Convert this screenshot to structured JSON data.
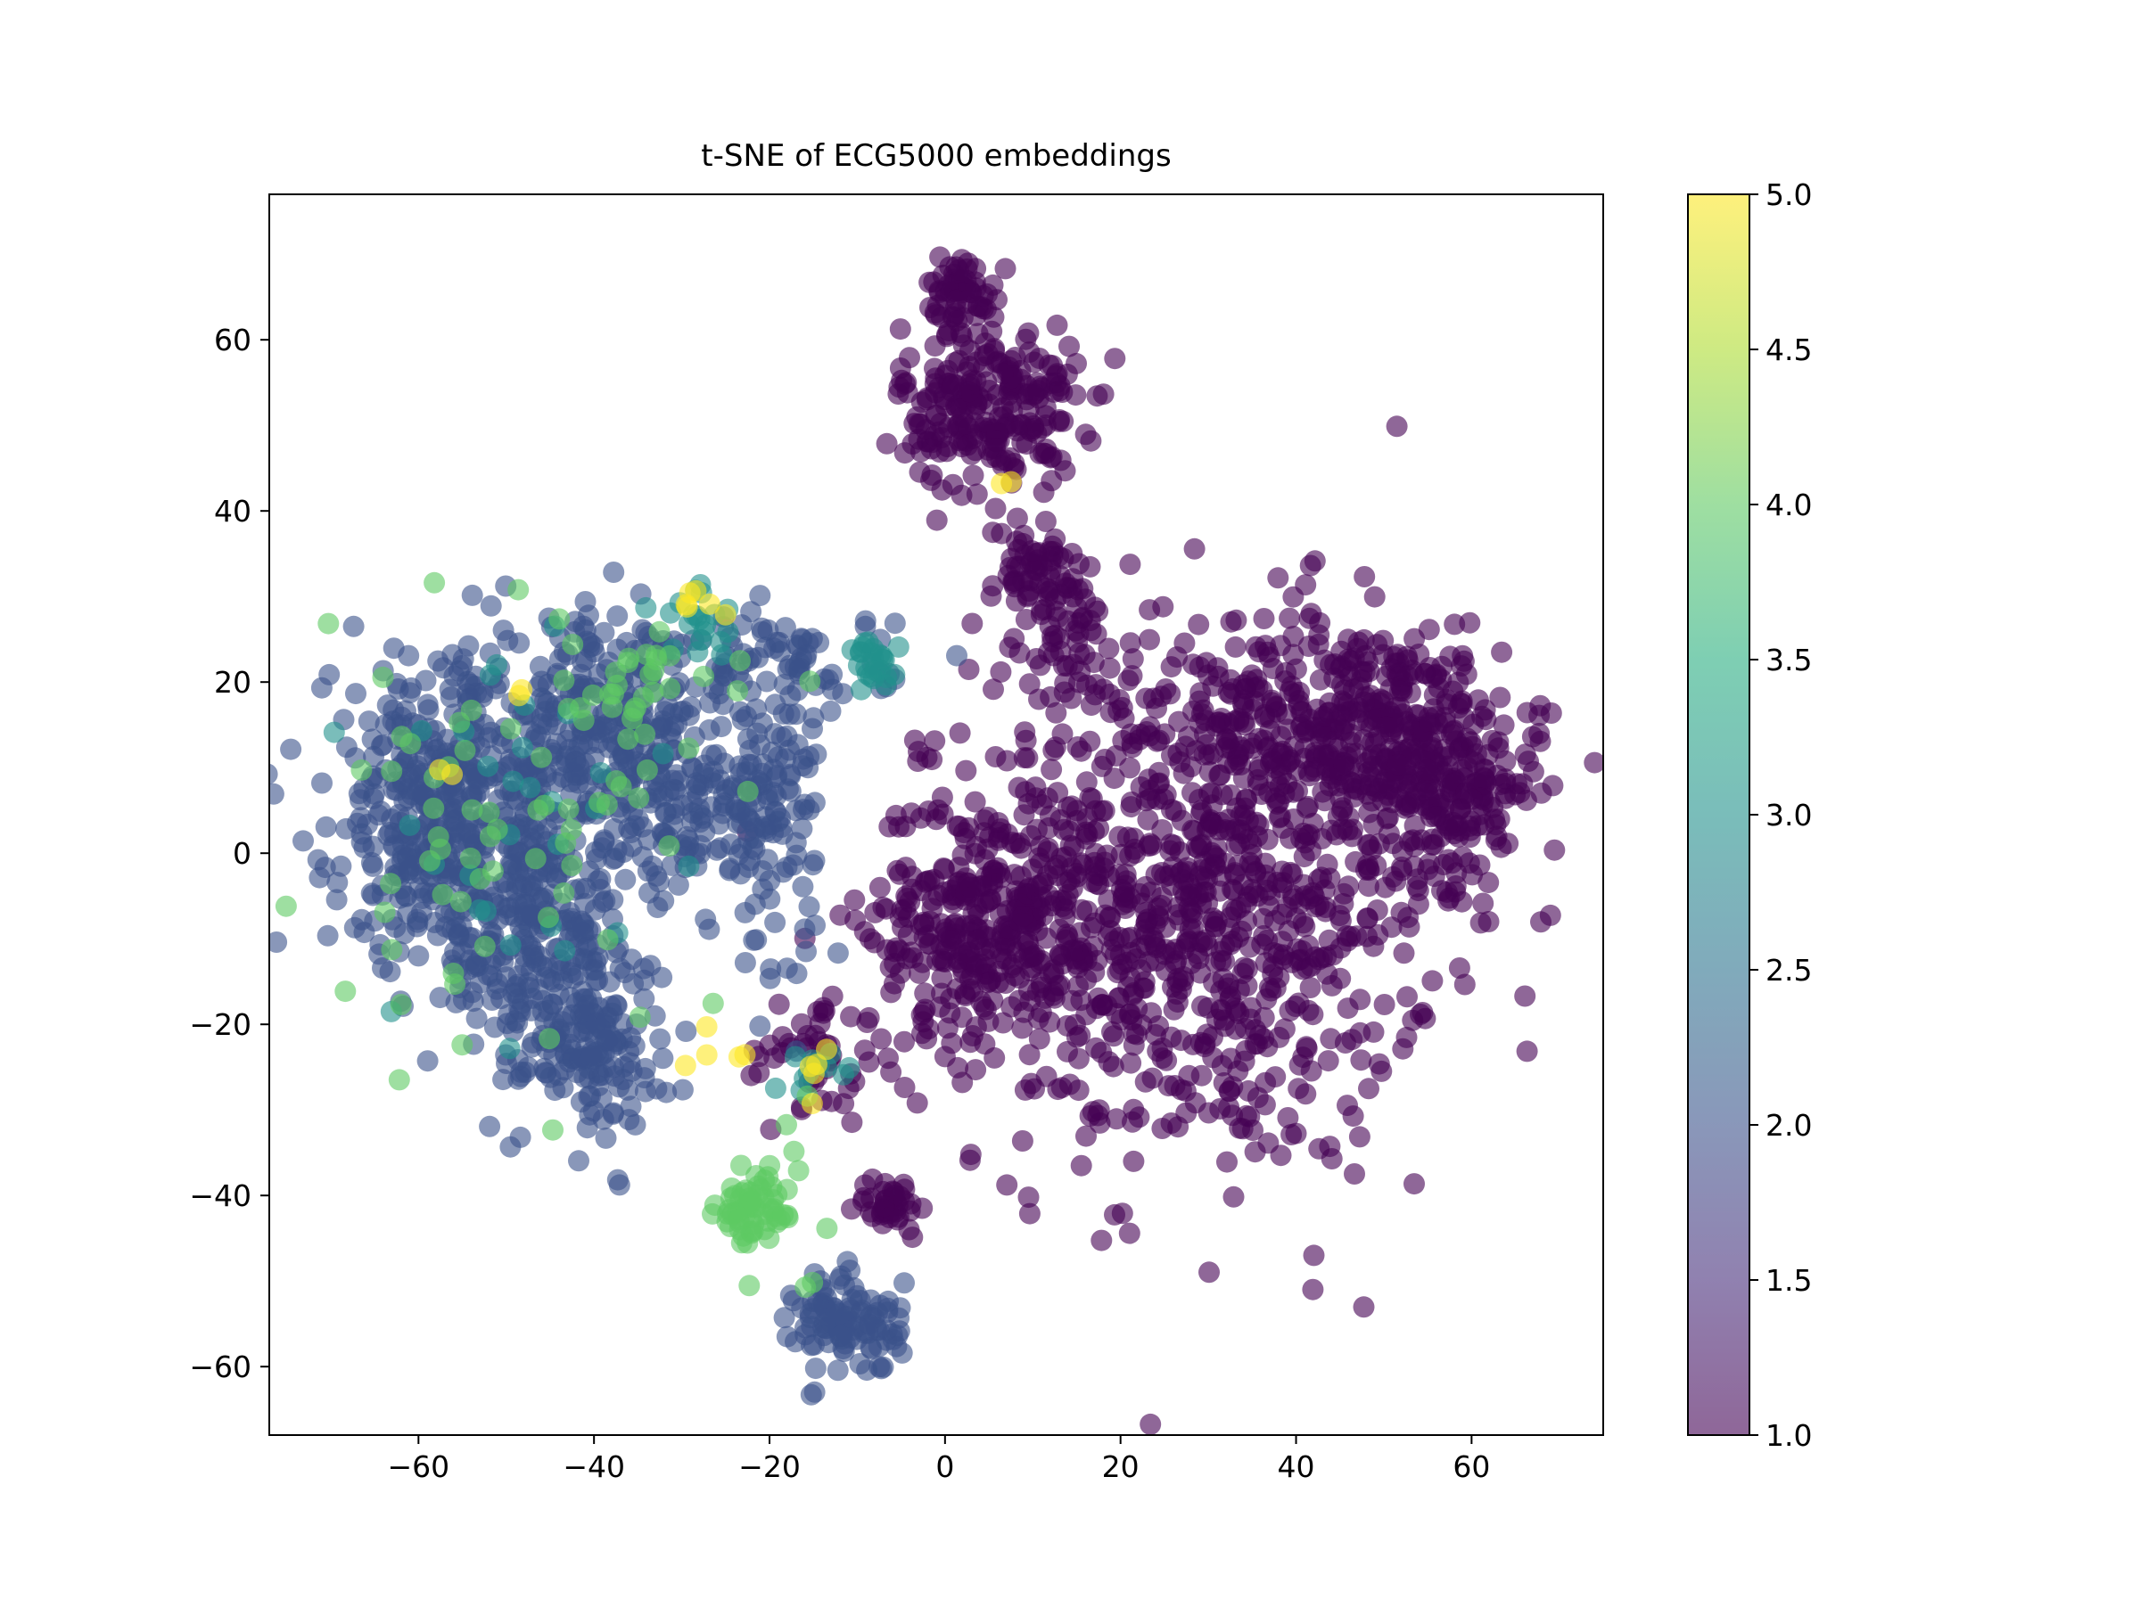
{
  "chart_data": {
    "type": "scatter",
    "title": "t-SNE of ECG5000 embeddings",
    "xlabel": "",
    "ylabel": "",
    "xlim": [
      -77,
      75
    ],
    "ylim": [
      -68,
      77
    ],
    "x_ticks": [
      -60,
      -40,
      -20,
      0,
      20,
      40,
      60
    ],
    "x_tick_labels": [
      "−60",
      "−40",
      "−20",
      "0",
      "20",
      "40",
      "60"
    ],
    "y_ticks": [
      -60,
      -40,
      -20,
      0,
      20,
      40,
      60
    ],
    "y_tick_labels": [
      "−60",
      "−40",
      "−20",
      "0",
      "20",
      "40",
      "60"
    ],
    "grid": false,
    "legend": "none",
    "colormap": "viridis",
    "marker_alpha": 0.6,
    "colorbar": {
      "range": [
        1.0,
        5.0
      ],
      "ticks": [
        1.0,
        1.5,
        2.0,
        2.5,
        3.0,
        3.5,
        4.0,
        4.5,
        5.0
      ],
      "tick_labels": [
        "1.0",
        "1.5",
        "2.0",
        "2.5",
        "3.0",
        "3.5",
        "4.0",
        "4.5",
        "5.0"
      ]
    },
    "clusters": [
      {
        "label": 1,
        "cx": 30,
        "cy": -5,
        "sx": 13,
        "sy": 16,
        "n": 900
      },
      {
        "label": 1,
        "cx": 47,
        "cy": 15,
        "sx": 9,
        "sy": 6,
        "n": 300
      },
      {
        "label": 1,
        "cx": 58,
        "cy": 8,
        "sx": 5,
        "sy": 6,
        "n": 200
      },
      {
        "label": 1,
        "cx": 5,
        "cy": -8,
        "sx": 7,
        "sy": 8,
        "n": 350
      },
      {
        "label": 1,
        "cx": 5,
        "cy": 52,
        "sx": 5,
        "sy": 5,
        "n": 250
      },
      {
        "label": 1,
        "cx": 2,
        "cy": 66,
        "sx": 2,
        "sy": 2,
        "n": 60
      },
      {
        "label": 1,
        "cx": 10,
        "cy": 32,
        "sx": 4,
        "sy": 3,
        "n": 70
      },
      {
        "label": 1,
        "cx": 15,
        "cy": 25,
        "sx": 2,
        "sy": 3,
        "n": 40
      },
      {
        "label": 1,
        "cx": -6,
        "cy": -41,
        "sx": 2,
        "sy": 1.5,
        "n": 40
      },
      {
        "label": 1,
        "cx": -15,
        "cy": -24,
        "sx": 4,
        "sy": 4,
        "n": 50
      },
      {
        "label": 2,
        "cx": -58,
        "cy": 5,
        "sx": 6,
        "sy": 9,
        "n": 380
      },
      {
        "label": 2,
        "cx": -47,
        "cy": -8,
        "sx": 6,
        "sy": 9,
        "n": 300
      },
      {
        "label": 2,
        "cx": -40,
        "cy": 15,
        "sx": 6,
        "sy": 6,
        "n": 220
      },
      {
        "label": 2,
        "cx": -30,
        "cy": 5,
        "sx": 4,
        "sy": 5,
        "n": 120
      },
      {
        "label": 2,
        "cx": -20,
        "cy": 5,
        "sx": 3,
        "sy": 8,
        "n": 120
      },
      {
        "label": 2,
        "cx": -40,
        "cy": -22,
        "sx": 4,
        "sy": 5,
        "n": 140
      },
      {
        "label": 2,
        "cx": -11,
        "cy": -55,
        "sx": 3,
        "sy": 3,
        "n": 110
      },
      {
        "label": 2,
        "cx": -20,
        "cy": 22,
        "sx": 7,
        "sy": 3,
        "n": 90
      },
      {
        "label": 3,
        "cx": -8,
        "cy": 22,
        "sx": 1.5,
        "sy": 1.5,
        "n": 25
      },
      {
        "label": 3,
        "cx": -28,
        "cy": 27,
        "sx": 3,
        "sy": 2,
        "n": 20
      },
      {
        "label": 3,
        "cx": -14,
        "cy": -25,
        "sx": 2,
        "sy": 2,
        "n": 12
      },
      {
        "label": 3,
        "cx": -50,
        "cy": 5,
        "sx": 10,
        "sy": 12,
        "n": 30
      },
      {
        "label": 4,
        "cx": -22,
        "cy": -42,
        "sx": 2,
        "sy": 2,
        "n": 60
      },
      {
        "label": 4,
        "cx": -52,
        "cy": 0,
        "sx": 10,
        "sy": 13,
        "n": 60
      },
      {
        "label": 4,
        "cx": -35,
        "cy": 18,
        "sx": 6,
        "sy": 6,
        "n": 35
      },
      {
        "label": 4,
        "cx": -18,
        "cy": -45,
        "sx": 3,
        "sy": 8,
        "n": 10
      },
      {
        "label": 5,
        "cx": -27,
        "cy": 29,
        "sx": 2,
        "sy": 1,
        "n": 6
      },
      {
        "label": 5,
        "cx": -26,
        "cy": -23,
        "sx": 2,
        "sy": 1,
        "n": 5
      },
      {
        "label": 5,
        "cx": 7,
        "cy": 44,
        "sx": 0.5,
        "sy": 0.5,
        "n": 2
      },
      {
        "label": 5,
        "cx": -14,
        "cy": -26,
        "sx": 2,
        "sy": 2,
        "n": 5
      },
      {
        "label": 5,
        "cx": -48,
        "cy": 19,
        "sx": 0.5,
        "sy": 0.5,
        "n": 2
      },
      {
        "label": 5,
        "cx": -57,
        "cy": 9,
        "sx": 0.5,
        "sy": 0.5,
        "n": 2
      }
    ]
  }
}
